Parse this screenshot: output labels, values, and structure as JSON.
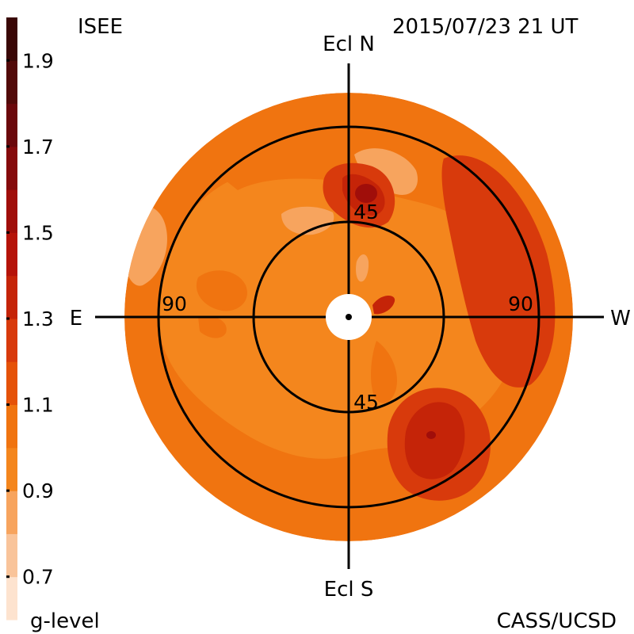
{
  "header": {
    "org_label": "ISEE",
    "timestamp": "2015/07/23 21 UT"
  },
  "footer": {
    "scale_label": "g-level",
    "credit": "CASS/UCSD"
  },
  "chart_data": {
    "type": "heatmap",
    "projection": "polar sky map (fisheye)",
    "direction_labels": {
      "top": "Ecl N",
      "bottom": "Ecl S",
      "left": "E",
      "right": "W"
    },
    "ring_labels": [
      {
        "text": "45",
        "elongation_deg": 45,
        "side": "top"
      },
      {
        "text": "45",
        "elongation_deg": 45,
        "side": "bottom"
      },
      {
        "text": "90",
        "elongation_deg": 90,
        "side": "left"
      },
      {
        "text": "90",
        "elongation_deg": 90,
        "side": "right"
      }
    ],
    "ring_elongations_deg": [
      45,
      90
    ],
    "colorbar": {
      "label": "g-level",
      "range": [
        0.6,
        2.0
      ],
      "step": 0.1,
      "tick_labels": [
        "1.9",
        "1.7",
        "1.5",
        "1.3",
        "1.1",
        "0.9",
        "0.7"
      ],
      "tick_values": [
        1.9,
        1.7,
        1.5,
        1.3,
        1.1,
        0.9,
        0.7
      ],
      "colors": [
        "#fde3cf",
        "#f9c49a",
        "#f7a45e",
        "#f4861d",
        "#f07410",
        "#e55208",
        "#d83a0c",
        "#c52408",
        "#b51309",
        "#a00e0a",
        "#850a0c",
        "#6b080c",
        "#520a09",
        "#3a0706"
      ]
    },
    "regions": [
      {
        "level": 1.05,
        "description": "outer ring and upper region"
      },
      {
        "level": 0.95,
        "description": "inner disk background"
      },
      {
        "level": 0.85,
        "description": "lighter patches east and north"
      },
      {
        "level": 1.25,
        "description": "enhancement west side"
      },
      {
        "level": 1.35,
        "description": "enhancement south-west"
      },
      {
        "level": 1.55,
        "description": "peak north of center"
      }
    ]
  }
}
